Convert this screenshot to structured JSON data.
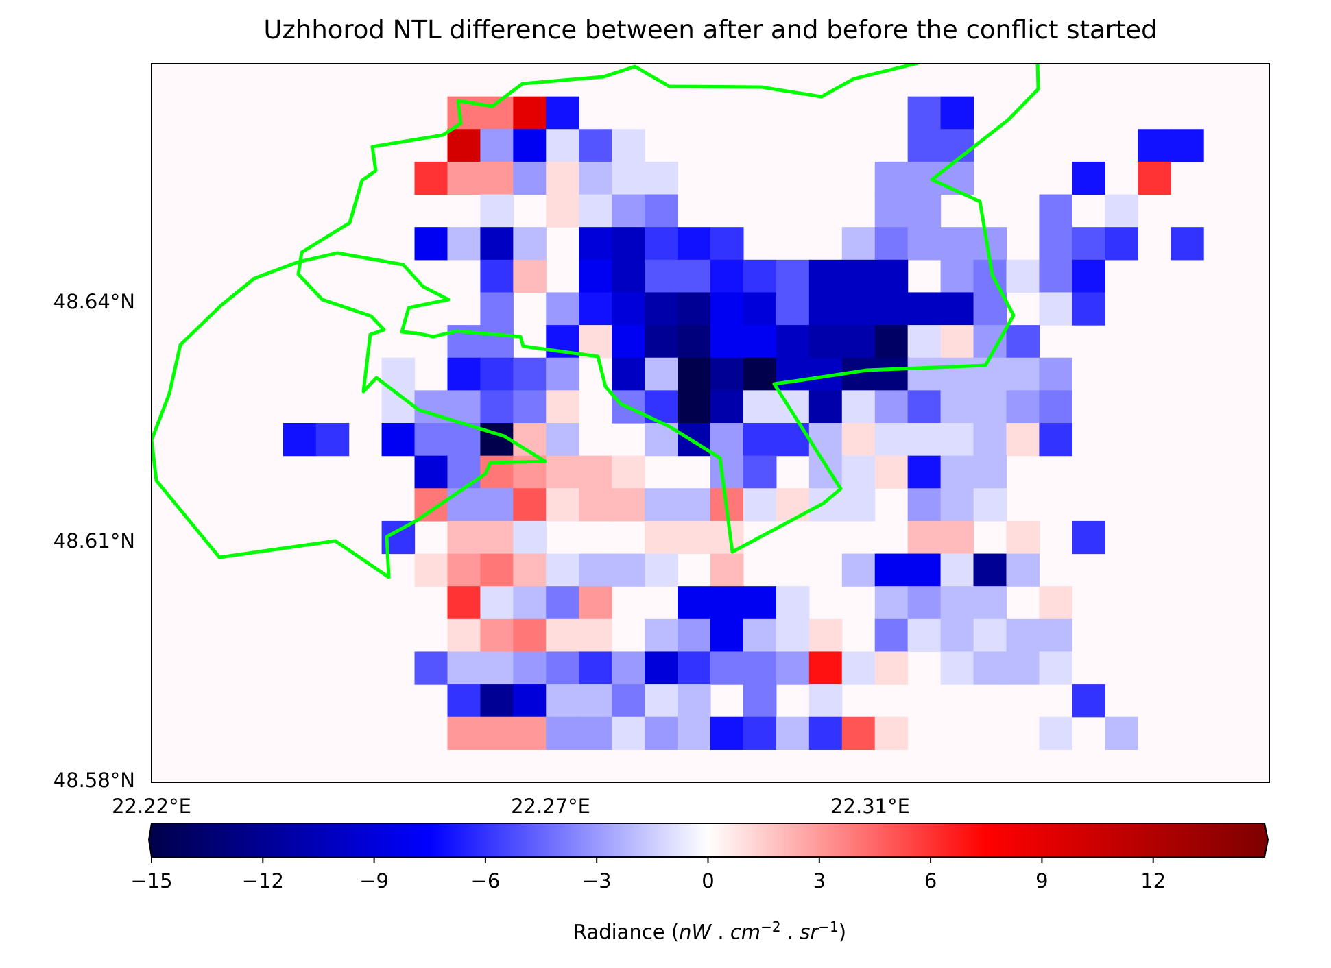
{
  "chart_data": {
    "type": "heatmap",
    "title": "Uzhhorod NTL difference between after and before the conflict started",
    "x_ticks": [
      "22.22°E",
      "22.27°E",
      "22.31°E"
    ],
    "y_ticks": [
      "48.64°N",
      "48.61°N",
      "48.58°N"
    ],
    "colorbar": {
      "colormap": "seismic",
      "vmin": -15,
      "vmax": 15,
      "extend": "both",
      "ticks": [
        "−15",
        "−12",
        "−9",
        "−6",
        "−3",
        "0",
        "3",
        "6",
        "9",
        "12"
      ],
      "tick_values": [
        -15,
        -12,
        -9,
        -6,
        -3,
        0,
        3,
        6,
        9,
        12
      ],
      "label": "Radiance (nW . cm−2 . sr−1)"
    },
    "grid": {
      "rows": 22,
      "cols": 34,
      "values": [
        [
          0,
          0,
          0,
          0,
          0,
          0,
          0,
          0,
          0,
          0,
          0,
          0,
          0,
          0,
          0,
          0,
          0,
          0,
          0,
          0,
          0,
          0,
          0,
          0,
          0,
          0,
          0,
          0,
          0,
          0,
          0,
          0,
          0,
          0
        ],
        [
          0,
          0,
          0,
          0,
          0,
          0,
          0,
          0,
          0,
          4,
          4,
          9,
          -7,
          0,
          0,
          0,
          0,
          0,
          0,
          0,
          0,
          0,
          0,
          -5,
          -7,
          0,
          0,
          0,
          0,
          0,
          0,
          0,
          0,
          0
        ],
        [
          0,
          0,
          0,
          0,
          0,
          0,
          0,
          0,
          0,
          10,
          -3,
          -8,
          -1,
          -5,
          -1,
          0,
          0,
          0,
          0,
          0,
          0,
          0,
          0,
          -5,
          -5,
          0,
          0,
          0,
          0,
          0,
          -7,
          -7,
          0,
          0
        ],
        [
          0,
          0,
          0,
          0,
          0,
          0,
          0,
          0,
          6,
          3,
          3,
          -3,
          1,
          -2,
          -1,
          -1,
          0,
          0,
          0,
          0,
          0,
          0,
          -3,
          -3,
          -3,
          0,
          0,
          0,
          -7,
          0,
          6,
          0,
          0,
          0
        ],
        [
          0,
          0,
          0,
          0,
          0,
          0,
          0,
          0,
          0,
          0,
          -1,
          0,
          1,
          -1,
          -3,
          -4,
          0,
          0,
          0,
          0,
          0,
          0,
          -3,
          -3,
          0,
          0,
          0,
          -4,
          0,
          -1,
          0,
          0,
          0,
          0
        ],
        [
          0,
          0,
          0,
          0,
          0,
          0,
          0,
          0,
          -8,
          -2,
          -10,
          -2,
          0,
          -9,
          -10,
          -6,
          -7,
          -6,
          0,
          0,
          0,
          -2,
          -4,
          -3,
          -3,
          -3,
          0,
          -4,
          -5,
          -6,
          0,
          -6,
          0,
          0
        ],
        [
          0,
          0,
          0,
          0,
          0,
          0,
          0,
          0,
          0,
          0,
          -6,
          2,
          0,
          -8,
          -10,
          -5,
          -5,
          -7,
          -6,
          -5,
          -10,
          -10,
          -10,
          0,
          -3,
          -4,
          -1,
          -4,
          -7,
          0,
          0,
          0,
          0,
          0
        ],
        [
          0,
          0,
          0,
          0,
          0,
          0,
          0,
          0,
          0,
          0,
          -4,
          0,
          -3,
          -7,
          -9,
          -11,
          -12,
          -8,
          -9,
          -5,
          -10,
          -10,
          -10,
          -10,
          -10,
          -4,
          0,
          -1,
          -6,
          0,
          0,
          0,
          0,
          0
        ],
        [
          0,
          0,
          0,
          0,
          0,
          0,
          0,
          0,
          0,
          -4,
          -4,
          0,
          -7,
          1,
          -8,
          -12,
          -13,
          -8,
          -8,
          -10,
          -11,
          -11,
          -14,
          -1,
          1,
          -3,
          -5,
          0,
          0,
          0,
          0,
          0,
          0,
          0
        ],
        [
          0,
          0,
          0,
          0,
          0,
          0,
          0,
          -1,
          0,
          -7,
          -6,
          -5,
          -3,
          0,
          -10,
          -2,
          -15,
          -12,
          -15,
          -10,
          -10,
          -13,
          -13,
          -2,
          -2,
          -2,
          -2,
          -3,
          0,
          0,
          0,
          0,
          0,
          0
        ],
        [
          0,
          0,
          0,
          0,
          0,
          0,
          0,
          -1,
          -3,
          -3,
          -5,
          -4,
          1,
          0,
          -4,
          -6,
          -15,
          -11,
          -1,
          -1,
          -11,
          -1,
          -3,
          -5,
          -2,
          -2,
          -3,
          -4,
          0,
          0,
          0,
          0,
          0,
          0
        ],
        [
          0,
          0,
          0,
          0,
          -7,
          -6,
          0,
          -8,
          -4,
          -4,
          -15,
          2,
          -2,
          0,
          0,
          -2,
          -11,
          -3,
          -6,
          -6,
          -2,
          1,
          -1,
          -1,
          -1,
          -2,
          1,
          -6,
          0,
          0,
          0,
          0,
          0,
          0
        ],
        [
          0,
          0,
          0,
          0,
          0,
          0,
          0,
          0,
          -9,
          -4,
          4,
          3,
          2,
          2,
          1,
          0,
          0,
          -3,
          -5,
          0,
          -2,
          -1,
          1,
          -7,
          -2,
          -2,
          0,
          0,
          0,
          0,
          0,
          0,
          0,
          0
        ],
        [
          0,
          0,
          0,
          0,
          0,
          0,
          0,
          0,
          4,
          -3,
          -3,
          5,
          1,
          2,
          2,
          -2,
          -2,
          4,
          -1,
          1,
          -1,
          -1,
          0,
          -3,
          -2,
          -1,
          0,
          0,
          0,
          0,
          0,
          0,
          0,
          0
        ],
        [
          0,
          0,
          0,
          0,
          0,
          0,
          0,
          -6,
          0,
          2,
          2,
          -1,
          0,
          0,
          0,
          1,
          1,
          1,
          0,
          0,
          0,
          0,
          0,
          2,
          2,
          0,
          1,
          0,
          -6,
          0,
          0,
          0,
          0,
          0
        ],
        [
          0,
          0,
          0,
          0,
          0,
          0,
          0,
          0,
          1,
          3,
          4,
          2,
          -1,
          -2,
          -2,
          -1,
          0,
          2,
          0,
          0,
          0,
          -2,
          -8,
          -8,
          -1,
          -12,
          -2,
          0,
          0,
          0,
          0,
          0,
          0,
          0
        ],
        [
          0,
          0,
          0,
          0,
          0,
          0,
          0,
          0,
          0,
          6,
          -1,
          -2,
          -4,
          3,
          0,
          0,
          -8,
          -8,
          -8,
          -1,
          0,
          0,
          -2,
          -3,
          -2,
          -2,
          0,
          1,
          0,
          0,
          0,
          0,
          0,
          0
        ],
        [
          0,
          0,
          0,
          0,
          0,
          0,
          0,
          0,
          0,
          1,
          3,
          4,
          1,
          1,
          0,
          -2,
          -3,
          -8,
          -2,
          -1,
          1,
          0,
          -4,
          -1,
          -2,
          -1,
          -2,
          -2,
          0,
          0,
          0,
          0,
          0,
          0
        ],
        [
          0,
          0,
          0,
          0,
          0,
          0,
          0,
          0,
          -5,
          -2,
          -2,
          -3,
          -4,
          -6,
          -3,
          -9,
          -6,
          -4,
          -4,
          -3,
          7,
          -1,
          1,
          0,
          -1,
          -2,
          -2,
          -1,
          0,
          0,
          0,
          0,
          0,
          0
        ],
        [
          0,
          0,
          0,
          0,
          0,
          0,
          0,
          0,
          0,
          -6,
          -12,
          -9,
          -2,
          -2,
          -4,
          -1,
          -2,
          0,
          -4,
          0,
          -1,
          0,
          0,
          0,
          0,
          0,
          0,
          0,
          -6,
          0,
          0,
          0,
          0,
          0
        ],
        [
          0,
          0,
          0,
          0,
          0,
          0,
          0,
          0,
          0,
          3,
          3,
          3,
          -3,
          -3,
          -1,
          -3,
          -2,
          -7,
          -6,
          -2,
          -6,
          5,
          1,
          0,
          0,
          0,
          0,
          -1,
          0,
          -2,
          0,
          0,
          0,
          0
        ],
        [
          0,
          0,
          0,
          0,
          0,
          0,
          0,
          0,
          0,
          0,
          0,
          0,
          0,
          0,
          0,
          0,
          0,
          0,
          0,
          0,
          0,
          0,
          0,
          0,
          0,
          0,
          0,
          0,
          0,
          0,
          0,
          0,
          0,
          0
        ]
      ]
    },
    "boundary_color": "#00ff00",
    "boundary": [
      [
        221,
        549
      ],
      [
        228,
        608
      ],
      [
        320,
        720
      ],
      [
        489,
        696
      ],
      [
        567,
        749
      ],
      [
        564,
        690
      ],
      [
        608,
        666
      ],
      [
        708,
        598
      ],
      [
        715,
        582
      ],
      [
        795,
        580
      ],
      [
        735,
        543
      ],
      [
        611,
        505
      ],
      [
        549,
        458
      ],
      [
        530,
        478
      ],
      [
        540,
        395
      ],
      [
        560,
        388
      ],
      [
        541,
        368
      ],
      [
        470,
        344
      ],
      [
        435,
        307
      ],
      [
        440,
        275
      ],
      [
        510,
        232
      ],
      [
        528,
        170
      ],
      [
        548,
        156
      ],
      [
        543,
        121
      ],
      [
        646,
        104
      ],
      [
        672,
        87
      ],
      [
        668,
        54
      ],
      [
        718,
        62
      ],
      [
        762,
        29
      ],
      [
        880,
        19
      ],
      [
        926,
        4
      ],
      [
        976,
        33
      ],
      [
        1110,
        34
      ],
      [
        1198,
        48
      ],
      [
        1245,
        22
      ],
      [
        1448,
        -28
      ],
      [
        1506,
        -34
      ],
      [
        1513,
        -5
      ],
      [
        1514,
        37
      ],
      [
        1470,
        82
      ],
      [
        1359,
        169
      ],
      [
        1429,
        201
      ],
      [
        1447,
        308
      ],
      [
        1478,
        367
      ],
      [
        1437,
        440
      ],
      [
        1264,
        447
      ],
      [
        1158,
        463
      ],
      [
        1129,
        467
      ],
      [
        1226,
        620
      ],
      [
        1201,
        641
      ],
      [
        1068,
        712
      ],
      [
        1050,
        575
      ],
      [
        976,
        529
      ],
      [
        905,
        496
      ],
      [
        883,
        471
      ],
      [
        872,
        427
      ],
      [
        763,
        412
      ],
      [
        759,
        398
      ],
      [
        666,
        390
      ],
      [
        632,
        398
      ],
      [
        607,
        393
      ],
      [
        586,
        391
      ],
      [
        596,
        356
      ],
      [
        654,
        344
      ],
      [
        617,
        325
      ],
      [
        588,
        293
      ],
      [
        492,
        276
      ],
      [
        435,
        289
      ],
      [
        371,
        313
      ],
      [
        323,
        352
      ],
      [
        263,
        410
      ],
      [
        247,
        481
      ],
      [
        221,
        549
      ]
    ]
  }
}
